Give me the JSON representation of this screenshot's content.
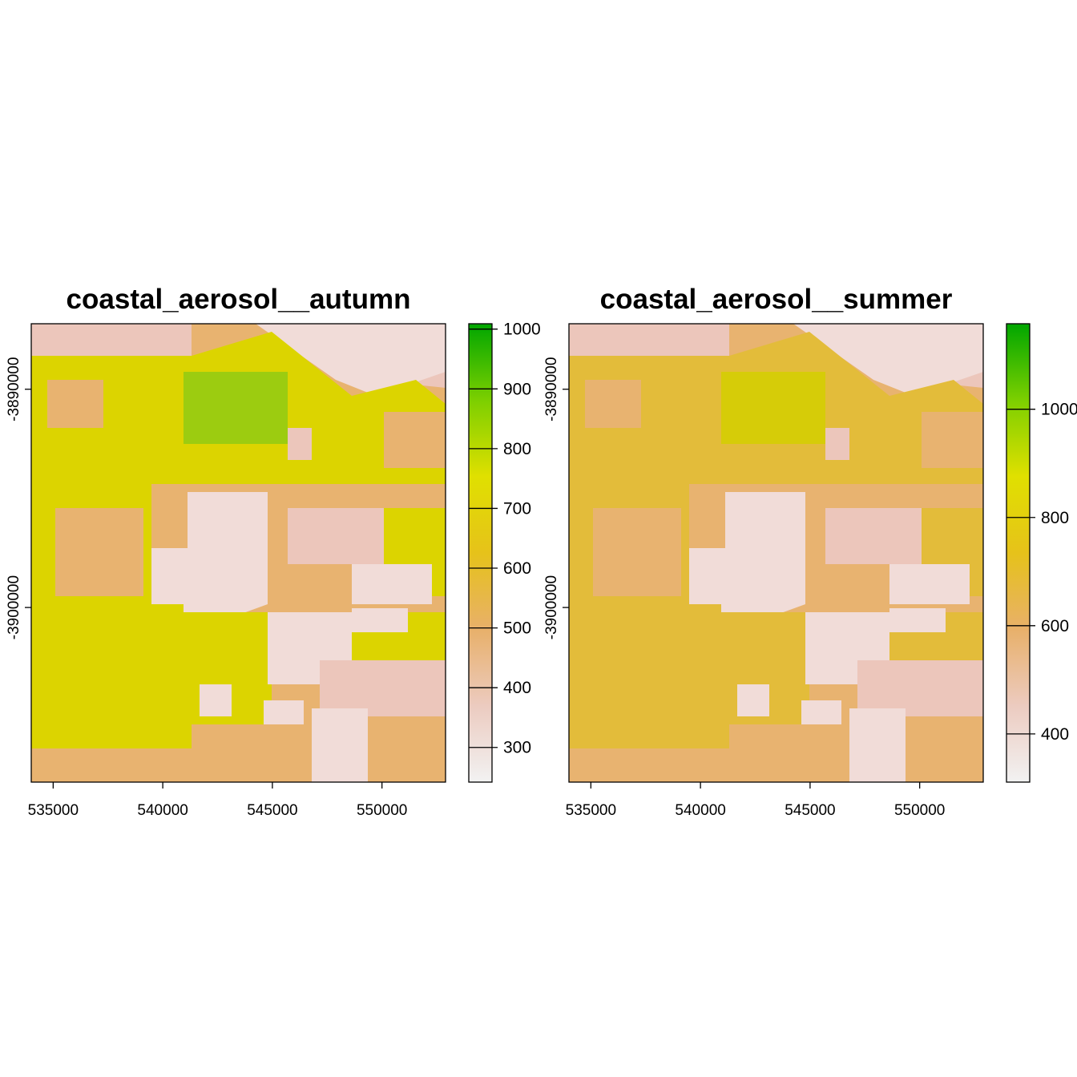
{
  "chart_data": [
    {
      "type": "raster",
      "title": "coastal_aerosol__autumn",
      "xlim": [
        534000,
        552900
      ],
      "xticks": [
        535000,
        540000,
        545000,
        550000
      ],
      "ylim": [
        -3908000,
        -3887000
      ],
      "yticks": [
        -3900000,
        -3890000
      ],
      "legend_lim": [
        242,
        1009
      ],
      "legend_ticks": [
        300,
        400,
        500,
        600,
        700,
        800,
        900,
        1000
      ],
      "colors": [
        "#f2f2f2",
        "#eccbc0",
        "#e8b06a",
        "#e6c21a",
        "#e0e000",
        "#7ccf00",
        "#00a600"
      ]
    },
    {
      "type": "raster",
      "title": "coastal_aerosol__summer",
      "xlim": [
        534000,
        552900
      ],
      "xticks": [
        535000,
        540000,
        545000,
        550000
      ],
      "ylim": [
        -3908000,
        -3887000
      ],
      "yticks": [
        -3900000,
        -3890000
      ],
      "legend_lim": [
        311,
        1158
      ],
      "legend_ticks": [
        400,
        600,
        800,
        1000
      ],
      "colors": [
        "#f2f2f2",
        "#eccbc0",
        "#e8b06a",
        "#e6c21a",
        "#e0e000",
        "#7ccf00",
        "#00a600"
      ]
    }
  ]
}
